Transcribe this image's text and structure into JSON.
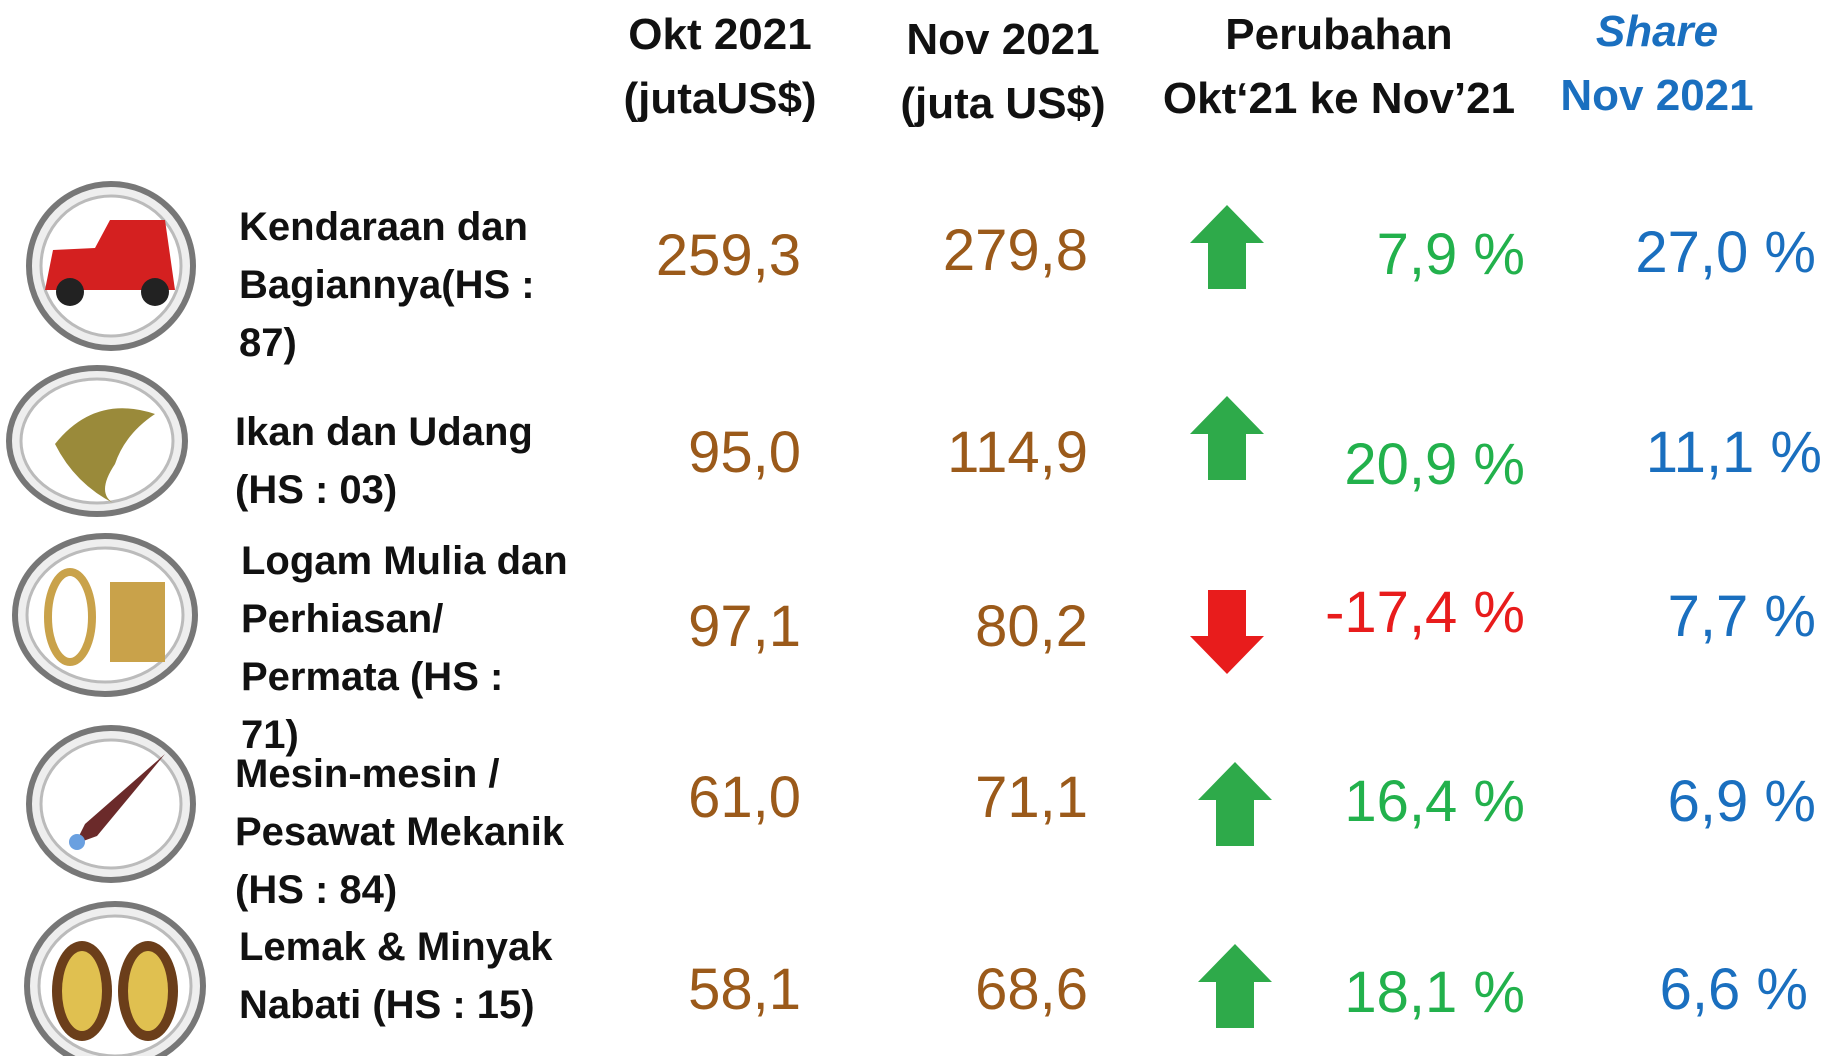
{
  "header": {
    "columns": [
      {
        "lines": [
          "Okt 2021",
          "(jutaUS$)"
        ]
      },
      {
        "lines": [
          "Nov 2021",
          "(juta US$)"
        ]
      },
      {
        "lines": [
          "Perubahan",
          "Okt‘21 ke Nov’21"
        ]
      },
      {
        "lines": [
          "Share",
          "Nov 2021"
        ]
      }
    ]
  },
  "rows": [
    {
      "label": "Kendaraan dan Bagiannya(HS : 87)",
      "okt": "259,3",
      "nov": "279,8",
      "change": "7,9 %",
      "share": "27,0 %"
    },
    {
      "label": "Ikan dan Udang (HS : 03)",
      "okt": "95,0",
      "nov": "114,9",
      "change": "20,9 %",
      "share": "11,1 %"
    },
    {
      "label": "Logam Mulia dan Perhiasan/ Permata (HS : 71)",
      "okt": "97,1",
      "nov": "80,2",
      "change": "-17,4 %",
      "share": "7,7 %"
    },
    {
      "label": "Mesin-mesin / Pesawat Mekanik (HS : 84)",
      "okt": "61,0",
      "nov": "71,1",
      "change": "16,4 %",
      "share": "6,9 %"
    },
    {
      "label": "Lemak & Minyak Nabati (HS : 15)",
      "okt": "58,1",
      "nov": "68,6",
      "change": "18,1 %",
      "share": "6,6 %"
    }
  ]
}
